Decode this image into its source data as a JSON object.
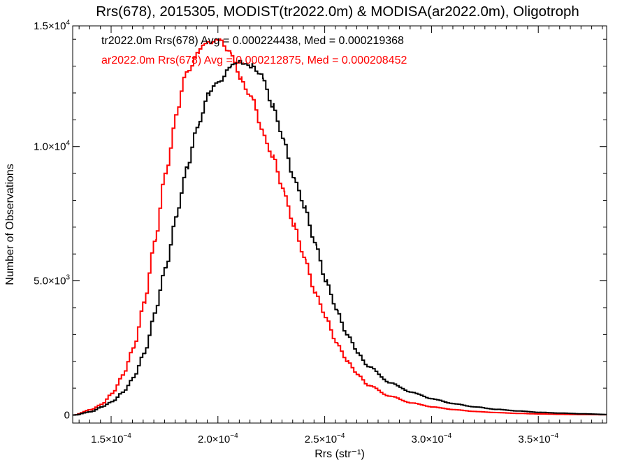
{
  "chart_data": {
    "type": "line",
    "title": "Rrs(678), 2015305, MODIST(tr2022.0m) & MODISA(ar2022.0m), Oligotroph",
    "xlabel": "Rrs (str⁻¹)",
    "ylabel": "Number of Observations",
    "xlim": [
      0.000132,
      0.000382
    ],
    "ylim": [
      -300,
      14500
    ],
    "x_ticks": [
      0.00015,
      0.0002,
      0.00025,
      0.0003,
      0.00035
    ],
    "x_tick_labels": [
      {
        "mant": "1.5×10",
        "exp": "−4"
      },
      {
        "mant": "2.0×10",
        "exp": "−4"
      },
      {
        "mant": "2.5×10",
        "exp": "−4"
      },
      {
        "mant": "3.0×10",
        "exp": "−4"
      },
      {
        "mant": "3.5×10",
        "exp": "−4"
      }
    ],
    "y_ticks": [
      0,
      5000,
      10000,
      14500
    ],
    "y_tick_labels": [
      {
        "mant": "0",
        "exp": ""
      },
      {
        "mant": "5.0×10",
        "exp": "3"
      },
      {
        "mant": "1.0×10",
        "exp": "4"
      },
      {
        "mant": "1.5×10",
        "exp": "4"
      }
    ],
    "grid": false,
    "style": "histogram-step",
    "series": [
      {
        "name": "tr2022.0m Rrs(678)",
        "annotation": "tr2022.0m Rrs(678) Avg = 0.000224438, Med = 0.000219368",
        "color": "#000000",
        "x": [
          0.000132,
          0.00014,
          0.000145,
          0.00015,
          0.000155,
          0.00016,
          0.000165,
          0.00017,
          0.000175,
          0.00018,
          0.000185,
          0.00019,
          0.000195,
          0.0002,
          0.000205,
          0.00021,
          0.000215,
          0.00022,
          0.000225,
          0.00023,
          0.000235,
          0.00024,
          0.000245,
          0.00025,
          0.000255,
          0.00026,
          0.000265,
          0.00027,
          0.00028,
          0.00029,
          0.0003,
          0.00031,
          0.00032,
          0.00033,
          0.00034,
          0.00035,
          0.00036,
          0.00037,
          0.000382
        ],
        "y": [
          0,
          120,
          300,
          500,
          850,
          1400,
          2300,
          3800,
          5500,
          7400,
          9200,
          10800,
          11900,
          12500,
          12900,
          13200,
          13000,
          12600,
          11600,
          10200,
          8900,
          7700,
          6400,
          5000,
          3900,
          3000,
          2300,
          1800,
          1200,
          850,
          600,
          420,
          300,
          210,
          150,
          100,
          70,
          45,
          20
        ]
      },
      {
        "name": "ar2022.0m Rrs(678)",
        "annotation": "ar2022.0m Rrs(678) Avg = 0.000212875, Med = 0.000208452",
        "color": "#ff0000",
        "x": [
          0.000132,
          0.00014,
          0.000145,
          0.00015,
          0.000155,
          0.00016,
          0.000165,
          0.00017,
          0.000175,
          0.00018,
          0.000185,
          0.00019,
          0.000195,
          0.0002,
          0.000205,
          0.00021,
          0.000215,
          0.00022,
          0.000225,
          0.00023,
          0.000235,
          0.00024,
          0.000245,
          0.00025,
          0.000255,
          0.00026,
          0.000265,
          0.00027,
          0.00028,
          0.00029,
          0.0003,
          0.00031,
          0.00032,
          0.00033,
          0.00034,
          0.00035,
          0.00036,
          0.00037,
          0.000382
        ],
        "y": [
          0,
          200,
          400,
          800,
          1500,
          2500,
          4200,
          6500,
          9000,
          11200,
          12800,
          13500,
          13900,
          14000,
          13500,
          12600,
          11800,
          10700,
          9600,
          8400,
          7100,
          5800,
          4600,
          3600,
          2700,
          2000,
          1500,
          1100,
          700,
          450,
          300,
          200,
          130,
          90,
          60,
          40,
          25,
          15,
          10
        ]
      }
    ]
  }
}
